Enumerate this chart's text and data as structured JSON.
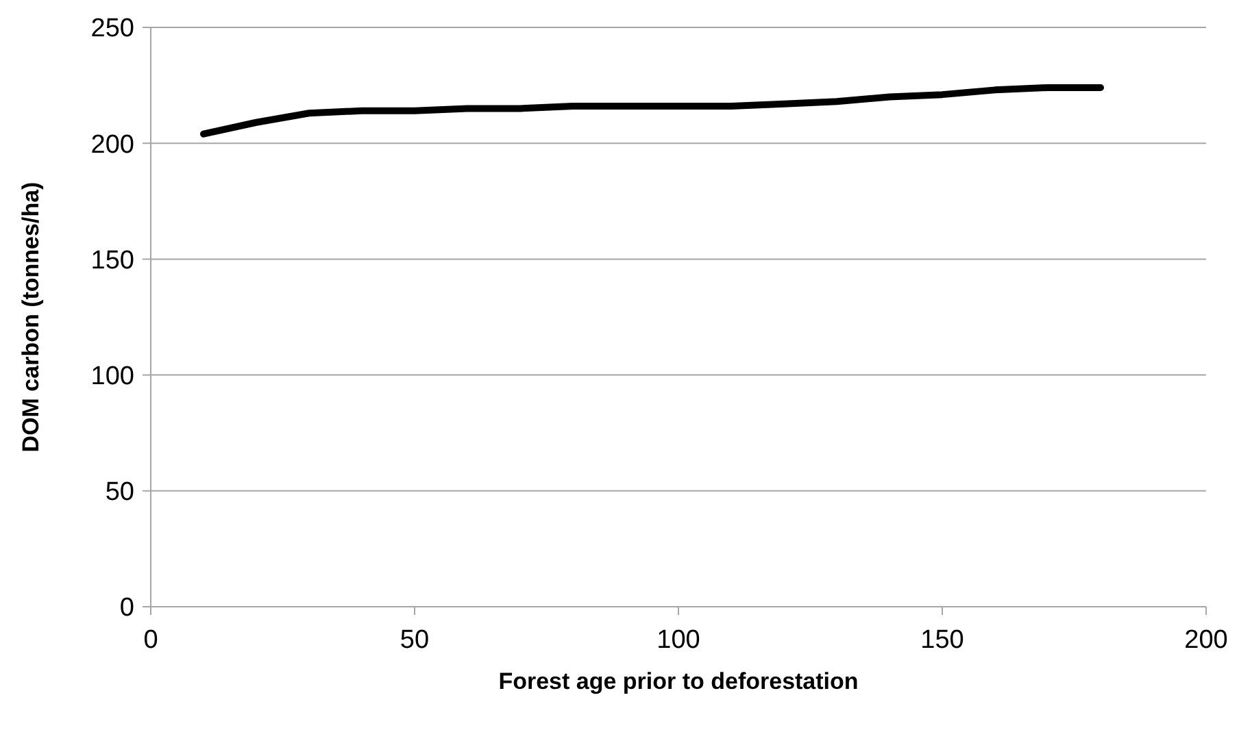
{
  "chart_data": {
    "type": "line",
    "xlabel": "Forest age prior to deforestation",
    "ylabel": "DOM carbon (tonnes/ha)",
    "x": [
      10,
      20,
      30,
      40,
      50,
      60,
      70,
      80,
      90,
      100,
      110,
      120,
      130,
      140,
      150,
      160,
      170,
      180
    ],
    "series": [
      {
        "color": "#000000",
        "values": [
          204,
          209,
          213,
          214,
          214,
          215,
          215,
          216,
          216,
          216,
          216,
          217,
          218,
          220,
          221,
          223,
          224,
          224
        ]
      }
    ],
    "xlim": [
      0,
      200
    ],
    "xticks": [
      0,
      50,
      100,
      150,
      200
    ],
    "ylim": [
      0,
      250
    ],
    "yticks": [
      0,
      50,
      100,
      150,
      200,
      250
    ],
    "grid": "y",
    "marker": "none",
    "line_style": "solid"
  }
}
